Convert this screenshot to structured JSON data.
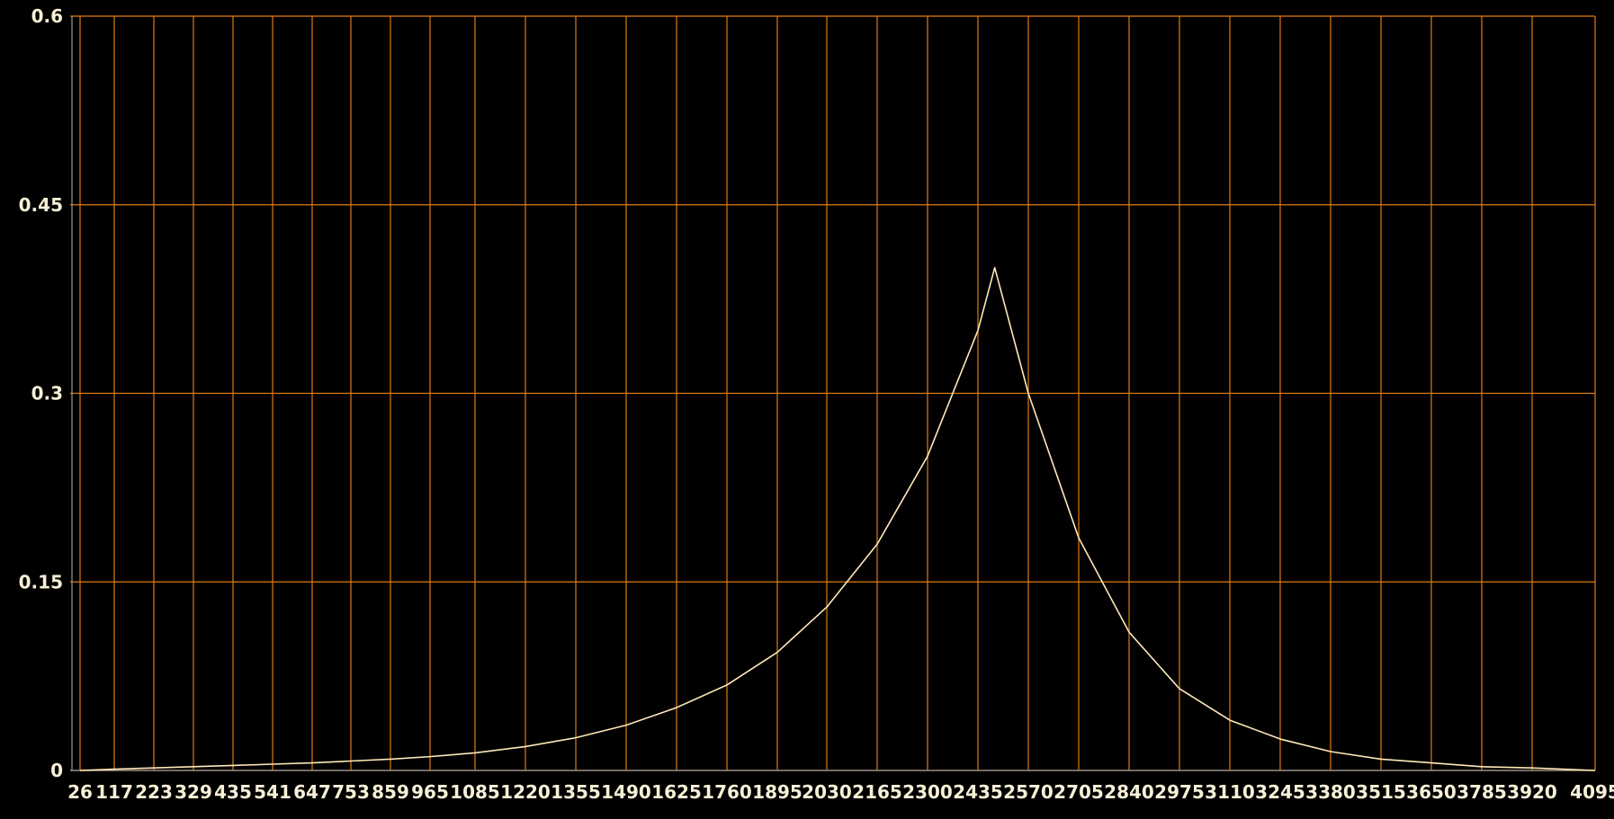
{
  "colors": {
    "background": "#000000",
    "grid": "#e07b12",
    "axis": "#9a9a9a",
    "series": "#ffe9b8",
    "text": "#f7f0d6"
  },
  "chart_data": {
    "type": "line",
    "title": "",
    "xlabel": "",
    "ylabel": "",
    "grid": true,
    "legend": "none",
    "ylim": [
      0,
      0.6
    ],
    "yticks": [
      0,
      0.15,
      0.3,
      0.45,
      0.6
    ],
    "ytick_labels": [
      "0",
      "0.15",
      "0.3",
      "0.45",
      "0.6"
    ],
    "xticks": [
      26,
      117,
      223,
      329,
      435,
      541,
      647,
      753,
      859,
      965,
      1085,
      1220,
      1355,
      1490,
      1625,
      1760,
      1895,
      2030,
      2165,
      2300,
      2435,
      2570,
      2705,
      2840,
      2975,
      3110,
      3245,
      3380,
      3515,
      3650,
      3785,
      3920,
      4095
    ],
    "xtick_labels": [
      "26",
      "117",
      "223",
      "329",
      "435",
      "541",
      "647",
      "753",
      "859",
      "965",
      "1085",
      "1220",
      "1355",
      "1490",
      "1625",
      "1760",
      "1895",
      "2030",
      "2165",
      "2300",
      "2435",
      "2570",
      "2705",
      "2840",
      "2975",
      "3110",
      "3245",
      "3380",
      "3515",
      "3650",
      "3785",
      "3920",
      "4095"
    ],
    "series": [
      {
        "points": [
          [
            26,
            0.0
          ],
          [
            117,
            0.001
          ],
          [
            223,
            0.002
          ],
          [
            329,
            0.003
          ],
          [
            435,
            0.004
          ],
          [
            541,
            0.005
          ],
          [
            647,
            0.006
          ],
          [
            753,
            0.0075
          ],
          [
            859,
            0.009
          ],
          [
            965,
            0.011
          ],
          [
            1085,
            0.014
          ],
          [
            1220,
            0.019
          ],
          [
            1355,
            0.026
          ],
          [
            1490,
            0.036
          ],
          [
            1625,
            0.05
          ],
          [
            1760,
            0.068
          ],
          [
            1895,
            0.094
          ],
          [
            2030,
            0.13
          ],
          [
            2165,
            0.18
          ],
          [
            2300,
            0.25
          ],
          [
            2435,
            0.35
          ],
          [
            2480,
            0.4
          ],
          [
            2570,
            0.3
          ],
          [
            2705,
            0.185
          ],
          [
            2840,
            0.11
          ],
          [
            2975,
            0.065
          ],
          [
            3110,
            0.04
          ],
          [
            3245,
            0.025
          ],
          [
            3380,
            0.015
          ],
          [
            3515,
            0.009
          ],
          [
            3650,
            0.006
          ],
          [
            3785,
            0.003
          ],
          [
            3920,
            0.002
          ],
          [
            4095,
            0.0
          ]
        ]
      }
    ]
  }
}
